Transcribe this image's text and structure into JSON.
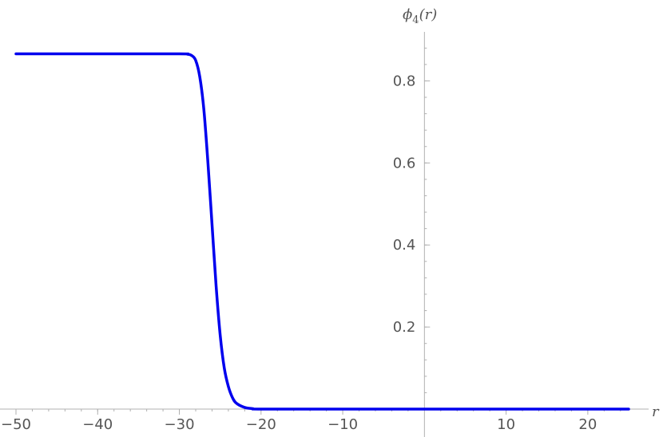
{
  "chart_data": {
    "type": "line",
    "title": "",
    "xlabel": "r",
    "ylabel_main": "ϕ",
    "ylabel_sub": "4",
    "ylabel_arg": "(r)",
    "xlim": [
      -50,
      25
    ],
    "ylim": [
      0,
      0.9
    ],
    "x_ticks": [
      -50,
      -40,
      -30,
      -20,
      -10,
      10,
      20
    ],
    "x_tick_labels": [
      "−50",
      "−40",
      "−30",
      "−20",
      "−10",
      "10",
      "20"
    ],
    "y_ticks": [
      0.2,
      0.4,
      0.6,
      0.8
    ],
    "y_tick_labels": [
      "0.2",
      "0.4",
      "0.6",
      "0.8"
    ],
    "grid": false,
    "series": [
      {
        "color": "#0000ee",
        "x": [
          -50,
          -40,
          -30,
          -29,
          -28.5,
          -28,
          -27.5,
          -27,
          -26.5,
          -26,
          -25.5,
          -25,
          -24.5,
          -24,
          -23.5,
          -23,
          -22,
          -21,
          -20,
          -10,
          0,
          10,
          20,
          25
        ],
        "y": [
          0.866,
          0.866,
          0.866,
          0.865,
          0.862,
          0.85,
          0.81,
          0.73,
          0.6,
          0.45,
          0.3,
          0.18,
          0.1,
          0.055,
          0.028,
          0.014,
          0.004,
          0.001,
          0.0,
          0.0,
          0.0,
          0.0,
          0.0,
          0.0
        ]
      }
    ]
  }
}
